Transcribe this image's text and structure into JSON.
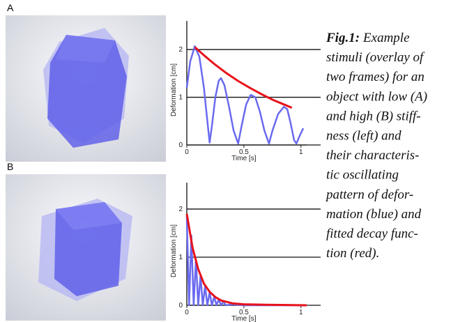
{
  "panels": {
    "a_label": "A",
    "b_label": "B"
  },
  "chart_data": [
    {
      "type": "line",
      "xlabel": "Time [s]",
      "ylabel": "Deformation [cm]",
      "xlim": [
        0,
        1.05
      ],
      "ylim": [
        0,
        2.6
      ],
      "xticks": [
        0,
        0.5,
        1
      ],
      "yticks": [
        0,
        1,
        2
      ],
      "grid": true,
      "series": [
        {
          "color": "#6a6af0",
          "x": [
            0,
            0.03,
            0.07,
            0.11,
            0.15,
            0.18,
            0.2,
            0.22,
            0.25,
            0.28,
            0.3,
            0.33,
            0.37,
            0.41,
            0.45,
            0.48,
            0.52,
            0.56,
            0.6,
            0.64,
            0.68,
            0.72,
            0.75,
            0.8,
            0.85,
            0.88,
            0.91,
            0.94,
            0.96,
            0.99,
            1.02
          ],
          "values": [
            1.2,
            1.75,
            2.07,
            1.85,
            1.2,
            0.5,
            0.05,
            0.4,
            1.0,
            1.35,
            1.4,
            1.25,
            0.8,
            0.3,
            0.03,
            0.4,
            0.85,
            1.05,
            1.0,
            0.7,
            0.3,
            0.03,
            0.3,
            0.65,
            0.8,
            0.75,
            0.45,
            0.1,
            0.03,
            0.2,
            0.35
          ]
        },
        {
          "color": "#e8121a",
          "x": [
            0.07,
            0.15,
            0.25,
            0.35,
            0.45,
            0.55,
            0.65,
            0.75,
            0.85,
            0.92
          ],
          "values": [
            2.05,
            1.88,
            1.68,
            1.5,
            1.34,
            1.2,
            1.07,
            0.95,
            0.85,
            0.78
          ]
        }
      ]
    },
    {
      "type": "line",
      "xlabel": "Time [s]",
      "ylabel": "Deformation [cm]",
      "xlim": [
        0,
        1.05
      ],
      "ylim": [
        0,
        2.55
      ],
      "xticks": [
        0,
        0.5,
        1
      ],
      "yticks": [
        0,
        1,
        2
      ],
      "grid": true,
      "series": [
        {
          "color": "#6a6af0",
          "x": [
            0,
            0.02,
            0.04,
            0.06,
            0.08,
            0.1,
            0.12,
            0.14,
            0.16,
            0.18,
            0.2,
            0.22,
            0.24,
            0.26,
            0.28,
            0.3,
            0.32,
            0.34,
            0.4,
            0.5,
            1.05
          ],
          "values": [
            1.85,
            0,
            1.45,
            0,
            0.95,
            0,
            0.62,
            0,
            0.4,
            0,
            0.27,
            0,
            0.18,
            0,
            0.12,
            0,
            0.08,
            0,
            0.02,
            0,
            0
          ]
        },
        {
          "color": "#e8121a",
          "x": [
            0,
            0.05,
            0.1,
            0.15,
            0.2,
            0.25,
            0.3,
            0.4,
            0.5,
            0.7,
            1.05
          ],
          "values": [
            1.9,
            1.2,
            0.75,
            0.45,
            0.28,
            0.17,
            0.1,
            0.04,
            0.02,
            0.01,
            0
          ]
        }
      ]
    }
  ],
  "caption": {
    "label": "Fig.1:",
    "lines": [
      "Example",
      "stimuli (overlay of",
      "two frames) for an",
      "object with low (A)",
      "and high (B) stiff-",
      "ness (left) and",
      "their characteris-",
      "tic oscillating",
      "pattern of defor-",
      "mation (blue) and",
      "fitted decay func-",
      "tion (red)."
    ]
  }
}
